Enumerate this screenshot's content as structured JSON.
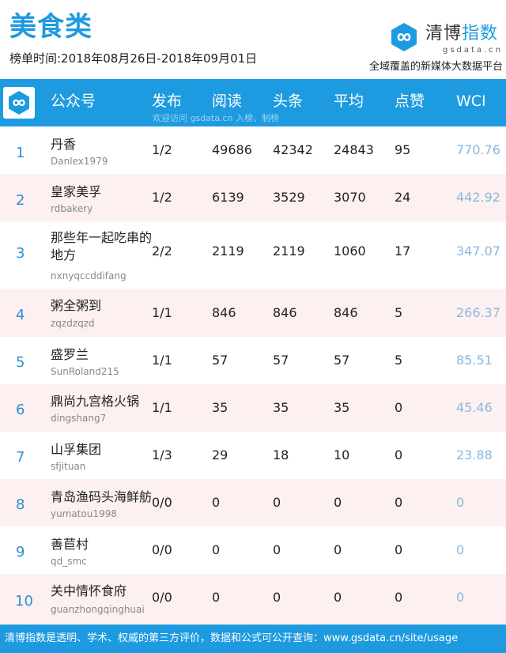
{
  "header": {
    "title": "美食类",
    "period": "榜单时间:2018年08月26日-2018年09月01日"
  },
  "brand": {
    "name_part1": "清博",
    "name_part2": "指数",
    "domain": "gsdata.cn",
    "tagline": "全域覆盖的新媒体大数据平台",
    "logo_icon": "infinity-logo-icon",
    "accent_color": "#1e9be0"
  },
  "table": {
    "columns": [
      "公众号",
      "发布",
      "阅读",
      "头条",
      "平均",
      "点赞",
      "WCI"
    ],
    "watermark": "欢迎访问 gsdata.cn 入榜、制榜",
    "rows": [
      {
        "rank": "1",
        "name": "丹香",
        "account": "Danlex1979",
        "publish": "1/2",
        "read": "49686",
        "headline": "42342",
        "average": "24843",
        "likes": "95",
        "wci": "770.76"
      },
      {
        "rank": "2",
        "name": "皇家美孚",
        "account": "rdbakery",
        "publish": "1/2",
        "read": "6139",
        "headline": "3529",
        "average": "3070",
        "likes": "24",
        "wci": "442.92"
      },
      {
        "rank": "3",
        "name": "那些年一起吃串的地方",
        "account": "nxnyqccddifang",
        "publish": "2/2",
        "read": "2119",
        "headline": "2119",
        "average": "1060",
        "likes": "17",
        "wci": "347.07"
      },
      {
        "rank": "4",
        "name": "粥全粥到",
        "account": "zqzdzqzd",
        "publish": "1/1",
        "read": "846",
        "headline": "846",
        "average": "846",
        "likes": "5",
        "wci": "266.37"
      },
      {
        "rank": "5",
        "name": "盛罗兰",
        "account": "SunRoland215",
        "publish": "1/1",
        "read": "57",
        "headline": "57",
        "average": "57",
        "likes": "5",
        "wci": "85.51"
      },
      {
        "rank": "6",
        "name": "鼎尚九宫格火锅",
        "account": "dingshang7",
        "publish": "1/1",
        "read": "35",
        "headline": "35",
        "average": "35",
        "likes": "0",
        "wci": "45.46"
      },
      {
        "rank": "7",
        "name": "山孚集团",
        "account": "sfjituan",
        "publish": "1/3",
        "read": "29",
        "headline": "18",
        "average": "10",
        "likes": "0",
        "wci": "23.88"
      },
      {
        "rank": "8",
        "name": "青岛渔码头海鲜舫",
        "account": "yumatou1998",
        "publish": "0/0",
        "read": "0",
        "headline": "0",
        "average": "0",
        "likes": "0",
        "wci": "0"
      },
      {
        "rank": "9",
        "name": "善苣村",
        "account": "qd_smc",
        "publish": "0/0",
        "read": "0",
        "headline": "0",
        "average": "0",
        "likes": "0",
        "wci": "0"
      },
      {
        "rank": "10",
        "name": "关中情怀食府",
        "account": "guanzhongqinghuai",
        "publish": "0/0",
        "read": "0",
        "headline": "0",
        "average": "0",
        "likes": "0",
        "wci": "0"
      }
    ]
  },
  "footer": {
    "text": "清博指数是透明、学术、权威的第三方评价，数据和公式可公开查询：www.gsdata.cn/site/usage"
  }
}
